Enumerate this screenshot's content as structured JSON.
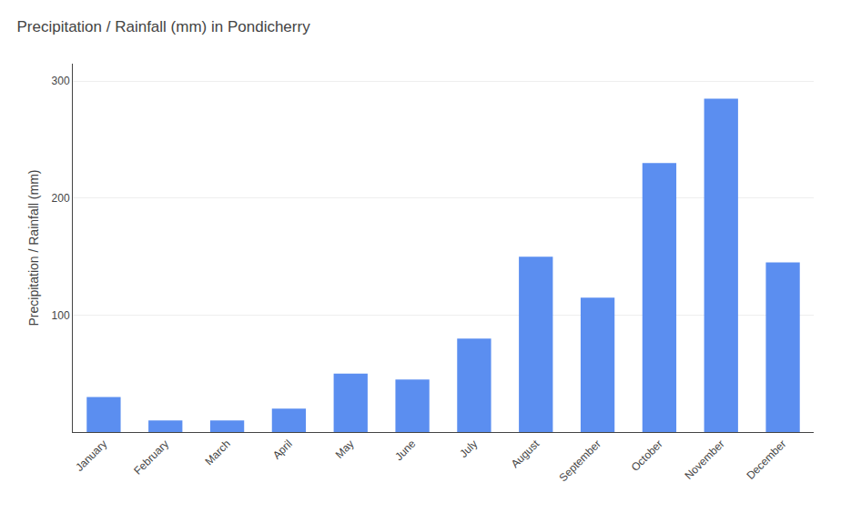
{
  "chart_data": {
    "type": "bar",
    "title": "Precipitation / Rainfall (mm) in Pondicherry",
    "ylabel": "Precipitation / Rainfall (mm)",
    "categories": [
      "January",
      "February",
      "March",
      "April",
      "May",
      "June",
      "July",
      "August",
      "September",
      "October",
      "November",
      "December"
    ],
    "values": [
      30,
      10,
      10,
      20,
      50,
      45,
      80,
      150,
      115,
      230,
      285,
      145
    ],
    "color": "#5b8ef0",
    "ylim": [
      0,
      315
    ],
    "yticks": [
      100,
      200,
      300
    ],
    "grid": true
  }
}
